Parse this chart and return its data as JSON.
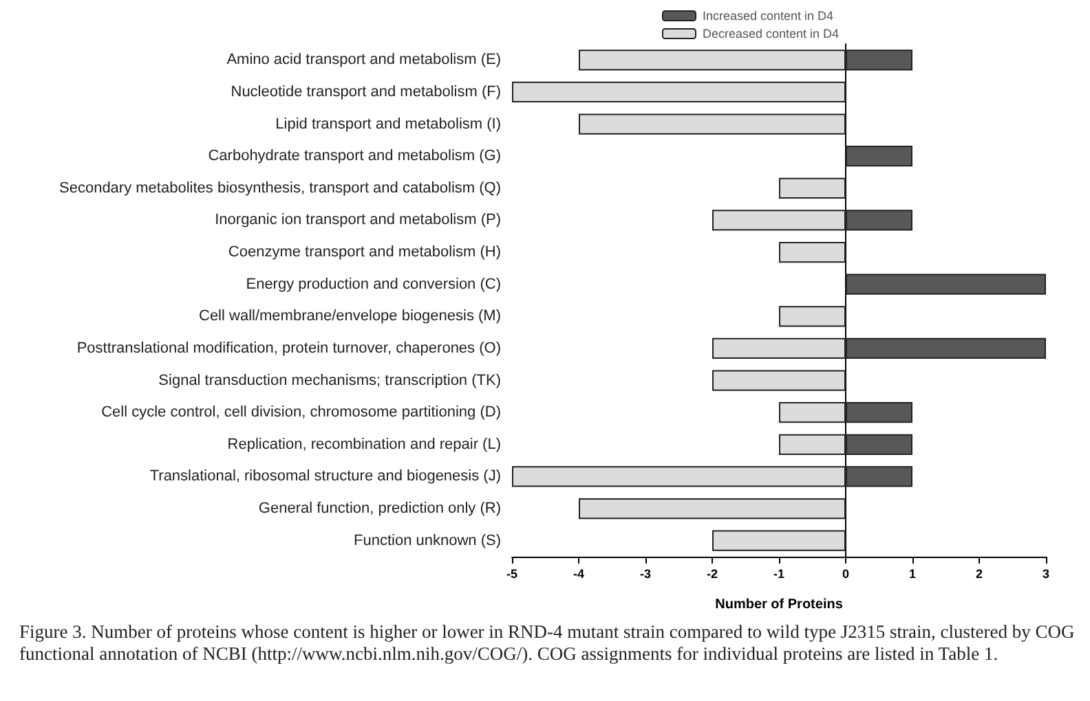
{
  "chart_data": {
    "type": "bar",
    "orientation": "horizontal",
    "stacked": true,
    "categories": [
      "Amino acid transport and metabolism (E)",
      "Nucleotide transport and metabolism (F)",
      "Lipid transport and metabolism (I)",
      "Carbohydrate transport and metabolism (G)",
      "Secondary metabolites biosynthesis, transport and catabolism (Q)",
      "Inorganic ion transport and metabolism (P)",
      "Coenzyme transport and metabolism (H)",
      "Energy production and conversion (C)",
      "Cell wall/membrane/envelope biogenesis (M)",
      "Posttranslational modification, protein turnover, chaperones (O)",
      "Signal transduction mechanisms; transcription (TK)",
      "Cell cycle control, cell division, chromosome partitioning (D)",
      "Replication, recombination and repair (L)",
      "Translational, ribosomal structure and biogenesis (J)",
      "General function, prediction only (R)",
      "Function unknown (S)"
    ],
    "series": [
      {
        "name": "Increased content in D4",
        "color": "#585858",
        "values": [
          1,
          null,
          null,
          1,
          null,
          1,
          null,
          3,
          null,
          3,
          null,
          1,
          1,
          1,
          null,
          null
        ]
      },
      {
        "name": "Decreased content in D4",
        "color": "#dcdcdc",
        "values": [
          -4,
          -5,
          -4,
          null,
          -1,
          -2,
          -1,
          null,
          -1,
          -2,
          -2,
          -1,
          -1,
          -5,
          -4,
          -2
        ]
      }
    ],
    "xlim": [
      -5,
      3
    ],
    "xticks": [
      -5,
      -4,
      -3,
      -2,
      -1,
      0,
      1,
      2,
      3
    ],
    "xlabel": "Number of Proteins",
    "legend": "top",
    "annotations": [
      "Figure 3. Number of proteins whose content is higher or lower in RND-4 mutant strain compared to wild type J2315 strain, clustered by COG functional annotation of NCBI (http://www.ncbi.nlm.nih.gov/COG/). COG assignments for individual proteins are listed in Table 1."
    ]
  }
}
